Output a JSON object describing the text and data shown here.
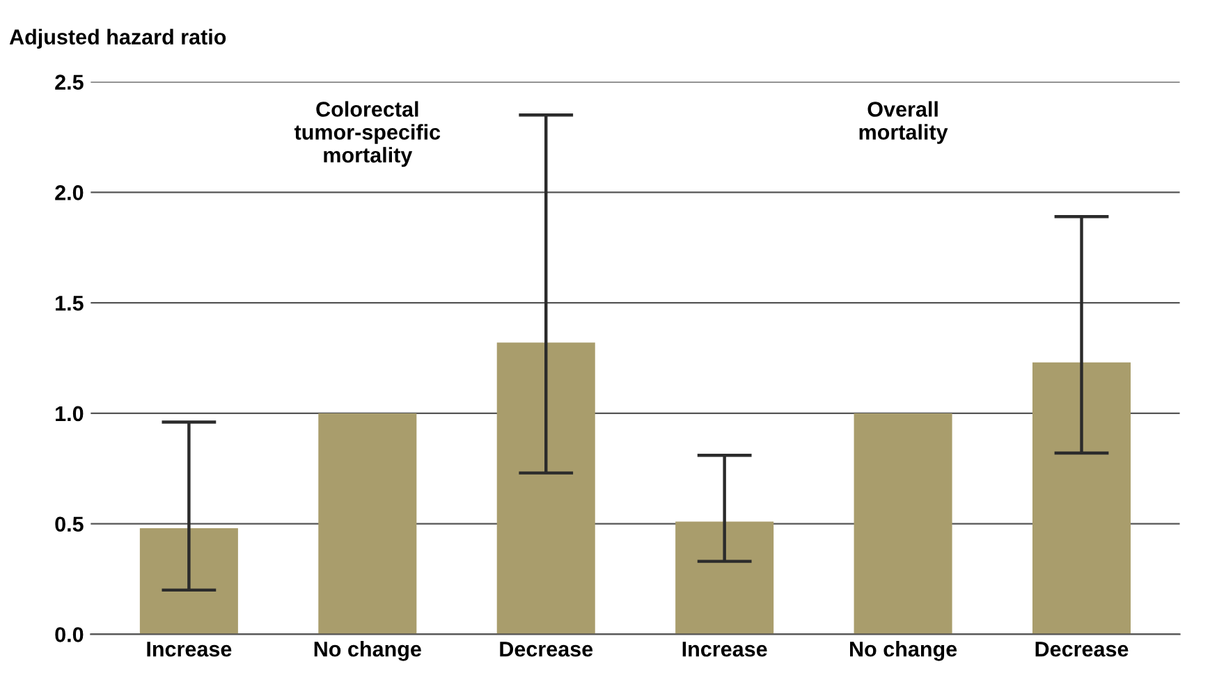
{
  "chart_data": {
    "type": "bar",
    "ylabel": "Adjusted hazard ratio",
    "annotations": [
      "Colorectal\ntumor-specific\nmortality",
      "Overall\nmortality"
    ],
    "categories": [
      "Increase",
      "No change",
      "Decrease",
      "Increase",
      "No change",
      "Decrease"
    ],
    "values": [
      0.48,
      1.0,
      1.32,
      0.51,
      1.0,
      1.23
    ],
    "errors": [
      [
        0.2,
        0.96
      ],
      null,
      [
        0.73,
        2.35
      ],
      [
        0.33,
        0.81
      ],
      null,
      [
        0.82,
        1.89
      ]
    ],
    "color": "#a99d6c",
    "ylim": [
      0,
      2.5
    ],
    "yticks": [
      {
        "value": 0,
        "label": "0.0"
      },
      {
        "value": 0.5,
        "label": "0.5"
      },
      {
        "value": 1,
        "label": "1.0"
      },
      {
        "value": 1.5,
        "label": "1.5"
      },
      {
        "value": 2,
        "label": "2.0"
      },
      {
        "value": 2.5,
        "label": "2.5"
      }
    ],
    "grid": "y"
  }
}
